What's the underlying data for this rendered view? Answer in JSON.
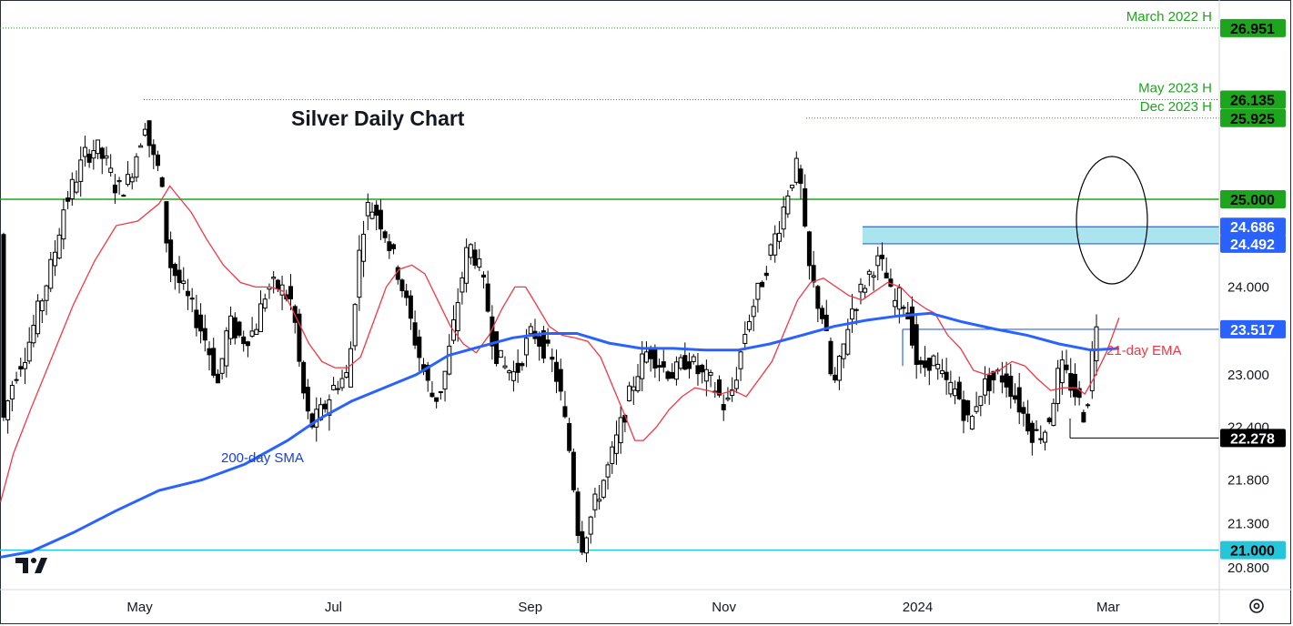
{
  "chart_data": {
    "type": "candlestick",
    "title": "Silver Daily Chart",
    "ylim": [
      20.55,
      27.25
    ],
    "y_ticks": [
      "20.800",
      "21.300",
      "21.800",
      "22.400",
      "23.000",
      "24.000"
    ],
    "x_ticks": [
      "May",
      "Jul",
      "Sep",
      "Nov",
      "2024",
      "Mar"
    ],
    "x_tick_dates": [
      "2023-05-01",
      "2023-07-01",
      "2023-09-01",
      "2023-11-01",
      "2024-01-01",
      "2024-03-01"
    ],
    "x_range": [
      "2023-03-18",
      "2024-04-05"
    ],
    "price_tags": [
      {
        "value": 26.951,
        "text": "26.951",
        "bg": "#1ea51e",
        "fg": "#000000"
      },
      {
        "value": 26.135,
        "text": "26.135",
        "bg": "#1ea51e",
        "fg": "#000000"
      },
      {
        "value": 25.925,
        "text": "25.925",
        "bg": "#1ea51e",
        "fg": "#000000"
      },
      {
        "value": 25.0,
        "text": "25.000",
        "bg": "#1ea51e",
        "fg": "#000000"
      },
      {
        "value": 24.686,
        "text": "24.686",
        "bg": "#2962ff",
        "fg": "#ffffff"
      },
      {
        "value": 24.492,
        "text": "24.492",
        "bg": "#2962ff",
        "fg": "#ffffff"
      },
      {
        "value": 23.517,
        "text": "23.517",
        "bg": "#2962ff",
        "fg": "#ffffff"
      },
      {
        "value": 22.278,
        "text": "22.278",
        "bg": "#000000",
        "fg": "#ffffff"
      },
      {
        "value": 21.0,
        "text": "21.000",
        "bg": "#26c6da",
        "fg": "#000000"
      }
    ],
    "level_labels": [
      {
        "text": "March 2022 H",
        "value": 26.951
      },
      {
        "text": "May 2023 H",
        "value": 26.135
      },
      {
        "text": "Dec 2023 H",
        "value": 25.925
      }
    ],
    "annotations": {
      "ema": "21-day EMA",
      "sma": "200-day SMA"
    },
    "series": [
      {
        "name": "21-day EMA",
        "color": "#f23645",
        "points": [
          [
            -4,
            21.55
          ],
          [
            2,
            22.1
          ],
          [
            10,
            22.6
          ],
          [
            20,
            23.2
          ],
          [
            30,
            23.8
          ],
          [
            40,
            24.3
          ],
          [
            50,
            24.7
          ],
          [
            60,
            24.75
          ],
          [
            70,
            24.95
          ],
          [
            75,
            25.15
          ],
          [
            80,
            25.0
          ],
          [
            85,
            24.85
          ],
          [
            92,
            24.55
          ],
          [
            100,
            24.25
          ],
          [
            108,
            24.05
          ],
          [
            115,
            24.0
          ],
          [
            122,
            24.0
          ],
          [
            128,
            23.95
          ],
          [
            134,
            23.65
          ],
          [
            140,
            23.35
          ],
          [
            146,
            23.15
          ],
          [
            152,
            23.08
          ],
          [
            158,
            23.08
          ],
          [
            164,
            23.2
          ],
          [
            170,
            23.6
          ],
          [
            176,
            24.0
          ],
          [
            182,
            24.2
          ],
          [
            188,
            24.25
          ],
          [
            194,
            24.15
          ],
          [
            200,
            23.85
          ],
          [
            206,
            23.55
          ],
          [
            212,
            23.35
          ],
          [
            218,
            23.25
          ],
          [
            224,
            23.45
          ],
          [
            230,
            23.75
          ],
          [
            236,
            24.0
          ],
          [
            241,
            24.0
          ],
          [
            246,
            23.8
          ],
          [
            252,
            23.55
          ],
          [
            258,
            23.45
          ],
          [
            264,
            23.42
          ],
          [
            270,
            23.38
          ],
          [
            276,
            23.2
          ],
          [
            282,
            22.85
          ],
          [
            288,
            22.5
          ],
          [
            292,
            22.25
          ],
          [
            296,
            22.25
          ],
          [
            302,
            22.4
          ],
          [
            308,
            22.6
          ],
          [
            314,
            22.75
          ],
          [
            320,
            22.85
          ],
          [
            326,
            22.82
          ],
          [
            332,
            22.78
          ],
          [
            338,
            22.82
          ],
          [
            344,
            22.75
          ],
          [
            350,
            22.95
          ],
          [
            356,
            23.15
          ],
          [
            362,
            23.5
          ],
          [
            368,
            23.85
          ],
          [
            374,
            24.05
          ],
          [
            380,
            24.1
          ],
          [
            386,
            24.0
          ],
          [
            392,
            23.9
          ],
          [
            398,
            23.85
          ],
          [
            404,
            23.95
          ],
          [
            410,
            24.05
          ],
          [
            416,
            24.0
          ],
          [
            422,
            23.85
          ],
          [
            428,
            23.75
          ],
          [
            432,
            23.7
          ],
          [
            438,
            23.45
          ],
          [
            444,
            23.3
          ],
          [
            450,
            23.05
          ],
          [
            456,
            23.0
          ],
          [
            462,
            23.05
          ],
          [
            468,
            23.15
          ],
          [
            474,
            23.1
          ],
          [
            480,
            22.95
          ],
          [
            486,
            22.82
          ],
          [
            492,
            22.85
          ],
          [
            498,
            22.85
          ],
          [
            502,
            22.78
          ],
          [
            506,
            22.95
          ],
          [
            512,
            23.25
          ],
          [
            518,
            23.65
          ]
        ]
      },
      {
        "name": "200-day SMA",
        "color": "#2962ff",
        "points": [
          [
            -4,
            20.92
          ],
          [
            10,
            20.98
          ],
          [
            30,
            21.2
          ],
          [
            50,
            21.45
          ],
          [
            70,
            21.68
          ],
          [
            90,
            21.8
          ],
          [
            110,
            21.98
          ],
          [
            130,
            22.25
          ],
          [
            145,
            22.5
          ],
          [
            160,
            22.7
          ],
          [
            175,
            22.85
          ],
          [
            190,
            23.0
          ],
          [
            205,
            23.22
          ],
          [
            220,
            23.32
          ],
          [
            235,
            23.42
          ],
          [
            250,
            23.47
          ],
          [
            265,
            23.47
          ],
          [
            280,
            23.36
          ],
          [
            295,
            23.3
          ],
          [
            310,
            23.3
          ],
          [
            325,
            23.28
          ],
          [
            340,
            23.28
          ],
          [
            355,
            23.35
          ],
          [
            370,
            23.45
          ],
          [
            385,
            23.55
          ],
          [
            400,
            23.62
          ],
          [
            415,
            23.67
          ],
          [
            430,
            23.7
          ],
          [
            445,
            23.6
          ],
          [
            460,
            23.52
          ],
          [
            475,
            23.45
          ],
          [
            490,
            23.35
          ],
          [
            505,
            23.28
          ],
          [
            518,
            23.3
          ]
        ]
      }
    ]
  },
  "watermark": "TV",
  "settings_icon": "gear-icon"
}
